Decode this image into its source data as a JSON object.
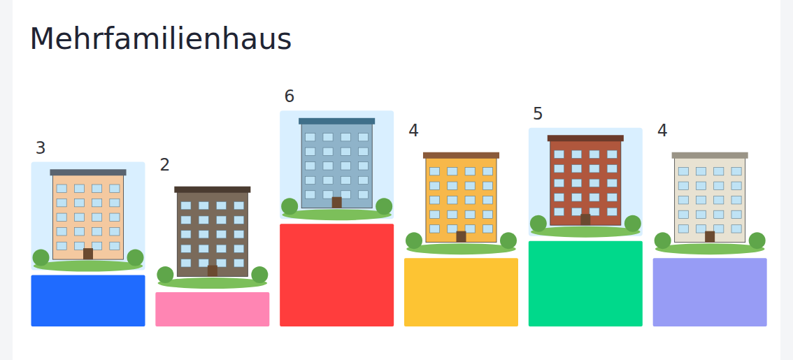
{
  "chart_data": {
    "type": "bar",
    "title": "Mehrfamilienhaus",
    "categories": [
      null,
      null,
      null,
      null,
      null,
      null
    ],
    "values": [
      3,
      2,
      6,
      4,
      5,
      4
    ],
    "colors": [
      "#1f6bff",
      "#ff85b3",
      "#ff3d3d",
      "#fdc433",
      "#00d98b",
      "#979cf5"
    ],
    "ylim": [
      0,
      15
    ],
    "data_labels": true,
    "tick_labels": false,
    "grid": false
  }
}
